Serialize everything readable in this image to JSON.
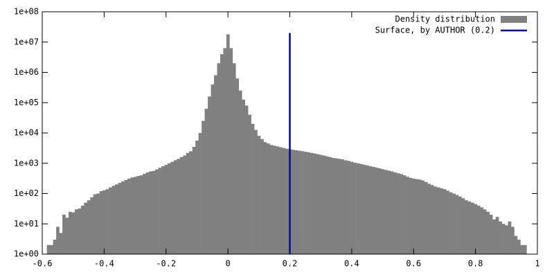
{
  "chart_data": {
    "type": "histogram",
    "bins": [
      -0.585,
      -0.575,
      -0.565,
      -0.555,
      -0.545,
      -0.535,
      -0.525,
      -0.515,
      -0.505,
      -0.495,
      -0.485,
      -0.475,
      -0.465,
      -0.455,
      -0.445,
      -0.435,
      -0.425,
      -0.415,
      -0.405,
      -0.395,
      -0.385,
      -0.375,
      -0.365,
      -0.355,
      -0.345,
      -0.335,
      -0.325,
      -0.315,
      -0.305,
      -0.295,
      -0.285,
      -0.275,
      -0.265,
      -0.255,
      -0.245,
      -0.235,
      -0.225,
      -0.215,
      -0.205,
      -0.195,
      -0.185,
      -0.175,
      -0.165,
      -0.155,
      -0.145,
      -0.135,
      -0.125,
      -0.115,
      -0.105,
      -0.095,
      -0.085,
      -0.075,
      -0.065,
      -0.055,
      -0.045,
      -0.035,
      -0.025,
      -0.015,
      -0.005,
      0.005,
      0.015,
      0.025,
      0.035,
      0.045,
      0.055,
      0.065,
      0.075,
      0.085,
      0.095,
      0.105,
      0.115,
      0.125,
      0.135,
      0.145,
      0.155,
      0.165,
      0.175,
      0.185,
      0.195,
      0.205,
      0.215,
      0.225,
      0.235,
      0.245,
      0.255,
      0.265,
      0.275,
      0.285,
      0.295,
      0.305,
      0.315,
      0.325,
      0.335,
      0.345,
      0.355,
      0.365,
      0.375,
      0.385,
      0.395,
      0.405,
      0.415,
      0.425,
      0.435,
      0.445,
      0.455,
      0.465,
      0.475,
      0.485,
      0.495,
      0.505,
      0.515,
      0.525,
      0.535,
      0.545,
      0.555,
      0.565,
      0.575,
      0.585,
      0.595,
      0.605,
      0.615,
      0.625,
      0.635,
      0.645,
      0.655,
      0.665,
      0.675,
      0.685,
      0.695,
      0.705,
      0.715,
      0.725,
      0.735,
      0.745,
      0.755,
      0.765,
      0.775,
      0.785,
      0.795,
      0.805,
      0.815,
      0.825,
      0.835,
      0.845,
      0.855,
      0.865,
      0.875,
      0.885,
      0.895,
      0.905,
      0.915,
      0.925,
      0.935,
      0.945,
      0.955,
      0.965
    ],
    "series": [
      {
        "name": "Density distribution",
        "color": "#808080",
        "values": [
          2,
          2,
          3,
          8,
          5,
          20,
          16,
          25,
          24,
          30,
          32,
          40,
          50,
          60,
          75,
          95,
          100,
          120,
          128,
          140,
          160,
          180,
          200,
          225,
          250,
          280,
          310,
          340,
          355,
          380,
          400,
          450,
          500,
          540,
          560,
          630,
          710,
          800,
          890,
          1000,
          1120,
          1260,
          1400,
          1600,
          1800,
          2200,
          2500,
          3500,
          5600,
          10000,
          25000,
          63000,
          160000,
          400000,
          800000,
          2000000,
          4000000,
          6300000,
          18000000,
          6300000,
          2000000,
          630000,
          250000,
          126000,
          80000,
          40000,
          20000,
          12600,
          8000,
          6300,
          5000,
          4500,
          4000,
          3800,
          3600,
          3400,
          3200,
          3000,
          2900,
          2800,
          2700,
          2600,
          2500,
          2400,
          2300,
          2200,
          2100,
          2000,
          1900,
          1800,
          1700,
          1600,
          1500,
          1450,
          1400,
          1350,
          1250,
          1200,
          1120,
          1050,
          1000,
          950,
          900,
          850,
          800,
          760,
          720,
          680,
          640,
          600,
          570,
          540,
          500,
          470,
          440,
          400,
          360,
          330,
          310,
          300,
          290,
          270,
          240,
          210,
          190,
          170,
          160,
          150,
          140,
          125,
          110,
          100,
          90,
          80,
          70,
          60,
          55,
          50,
          45,
          40,
          35,
          30,
          25,
          20,
          14,
          17,
          12,
          10,
          9,
          12,
          8,
          4,
          3,
          2,
          2
        ]
      },
      {
        "name": "Surface, by AUTHOR (0.2)",
        "color": "#0000c0",
        "type": "line",
        "x": [
          0.2,
          0.2
        ],
        "values": [
          1,
          20000000
        ]
      }
    ],
    "xlim": [
      -0.6,
      1
    ],
    "xticks": [
      -0.6,
      -0.4,
      -0.2,
      0,
      0.2,
      0.4,
      0.6,
      0.8,
      1
    ],
    "ylim": [
      1,
      100000000
    ],
    "log_y": true,
    "yticks": [
      {
        "value": 1,
        "label": "1e+00"
      },
      {
        "value": 10,
        "label": "1e+01"
      },
      {
        "value": 100,
        "label": "1e+02"
      },
      {
        "value": 1000,
        "label": "1e+03"
      },
      {
        "value": 10000,
        "label": "1e+04"
      },
      {
        "value": 100000,
        "label": "1e+05"
      },
      {
        "value": 1000000,
        "label": "1e+06"
      },
      {
        "value": 10000000,
        "label": "1e+07"
      },
      {
        "value": 100000000,
        "label": "1e+08"
      }
    ],
    "legend": "top-right"
  }
}
